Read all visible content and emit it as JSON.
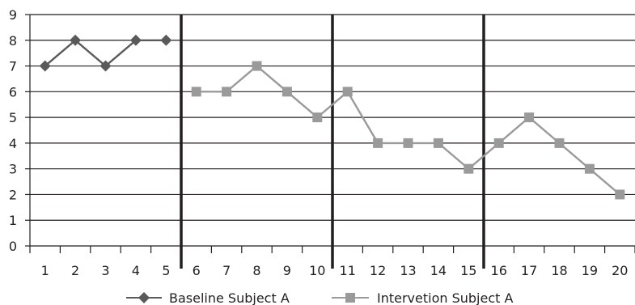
{
  "chart_data": {
    "type": "line",
    "title": "",
    "xlabel": "",
    "ylabel": "",
    "x": [
      1,
      2,
      3,
      4,
      5,
      6,
      7,
      8,
      9,
      10,
      11,
      12,
      13,
      14,
      15,
      16,
      17,
      18,
      19,
      20
    ],
    "ylim": [
      0,
      9
    ],
    "yticks": [
      0,
      1,
      2,
      3,
      4,
      5,
      6,
      7,
      8,
      9
    ],
    "grid": "horizontal",
    "legend": "bottom",
    "phase_change_after": [
      5,
      10,
      15
    ],
    "series": [
      {
        "name": "Baseline Subject A",
        "marker": "diamond",
        "color": "#5a5a5a",
        "points": [
          [
            1,
            7
          ],
          [
            2,
            8
          ],
          [
            3,
            7
          ],
          [
            4,
            8
          ],
          [
            5,
            8
          ]
        ]
      },
      {
        "name": "Intervetion Subject A",
        "marker": "square",
        "color": "#9a9a9a",
        "points": [
          [
            6,
            6
          ],
          [
            7,
            6
          ],
          [
            8,
            7
          ],
          [
            9,
            6
          ],
          [
            10,
            5
          ],
          [
            11,
            6
          ],
          [
            12,
            4
          ],
          [
            13,
            4
          ],
          [
            14,
            4
          ],
          [
            15,
            3
          ],
          [
            16,
            4
          ],
          [
            17,
            5
          ],
          [
            18,
            4
          ],
          [
            19,
            3
          ],
          [
            20,
            2
          ]
        ]
      }
    ]
  }
}
